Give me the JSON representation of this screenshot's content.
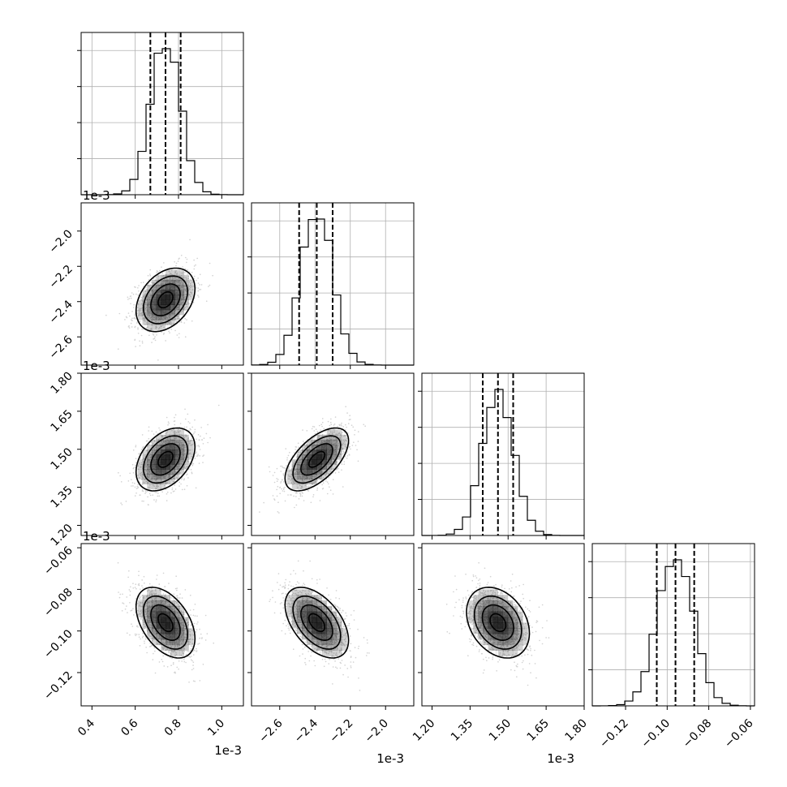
{
  "chart_data": {
    "type": "corner",
    "n_params": 4,
    "offset_label": "1e-3",
    "params": [
      {
        "range": [
          0.35,
          1.1
        ],
        "ticks": [
          0.4,
          0.6,
          0.8,
          1.0
        ],
        "tick_labels": [
          "0.4",
          "0.6",
          "0.8",
          "1.0"
        ],
        "scale_note": "1e-3",
        "quantiles": [
          0.67,
          0.74,
          0.81
        ],
        "median": 0.74,
        "sigma": 0.068
      },
      {
        "range": [
          -2.76,
          -1.84
        ],
        "ticks": [
          -2.6,
          -2.4,
          -2.2,
          -2.0
        ],
        "tick_labels": [
          "−2.6",
          "−2.4",
          "−2.2",
          "−2.0"
        ],
        "scale_note": "1e-3",
        "quantiles": [
          -2.49,
          -2.39,
          -2.3
        ],
        "median": -2.39,
        "sigma": 0.09
      },
      {
        "range": [
          1.16,
          1.8
        ],
        "ticks": [
          1.2,
          1.35,
          1.5,
          1.65,
          1.8
        ],
        "tick_labels": [
          "1.20",
          "1.35",
          "1.50",
          "1.65",
          "1.80"
        ],
        "scale_note": "1e-3",
        "quantiles": [
          1.4,
          1.46,
          1.52
        ],
        "median": 1.46,
        "sigma": 0.062
      },
      {
        "range": [
          -0.136,
          -0.058
        ],
        "ticks": [
          -0.12,
          -0.1,
          -0.08,
          -0.06
        ],
        "tick_labels": [
          "−0.12",
          "−0.10",
          "−0.08",
          "−0.06"
        ],
        "scale_note": "",
        "quantiles": [
          -0.105,
          -0.096,
          -0.087
        ],
        "median": -0.096,
        "sigma": 0.0085
      }
    ],
    "correlations": [
      [
        1.0,
        0.35,
        0.4,
        -0.45
      ],
      [
        0.35,
        1.0,
        0.6,
        -0.5
      ],
      [
        0.4,
        0.6,
        1.0,
        -0.3
      ],
      [
        -0.45,
        -0.5,
        -0.3,
        1.0
      ]
    ],
    "contour_levels_sigma": [
      0.5,
      1.0,
      1.5,
      2.0
    ],
    "grid": true,
    "colors": {
      "hist_line": "#000000",
      "quantile_line": "#000000",
      "grid": "#b0b0b0",
      "points": "#7f7f7f",
      "density": "#000000"
    }
  }
}
